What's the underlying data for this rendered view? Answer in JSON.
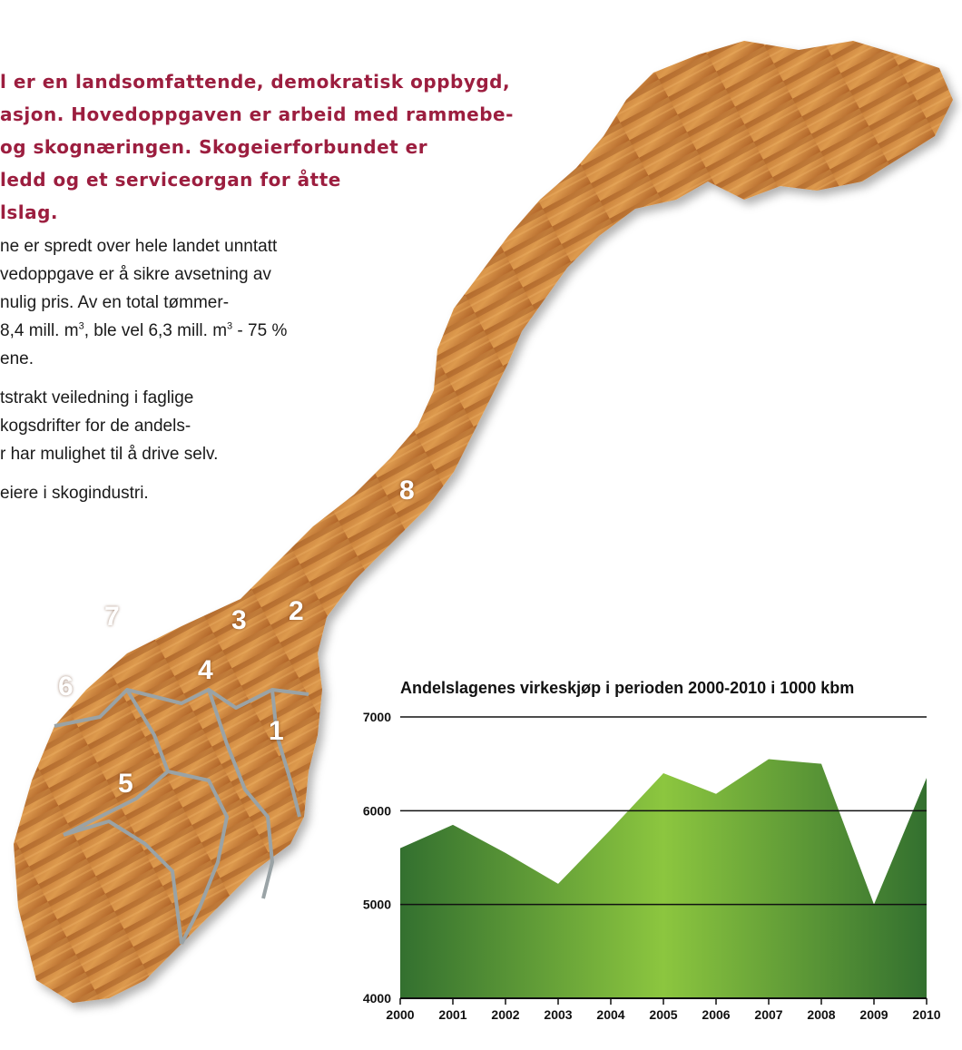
{
  "intro": {
    "lines": [
      "l er en landsomfattende, demokratisk oppbygd,",
      "asjon. Hovedoppgaven er arbeid med rammebe-",
      "og skognæringen. Skogeierforbundet er",
      "ledd og et serviceorgan for åtte",
      "lslag."
    ]
  },
  "body": {
    "p1": {
      "line1": "ne er spredt over hele landet unntatt",
      "line2": "vedoppgave er å sikre avsetning av",
      "line3": "nulig pris. Av en total tømmer-",
      "line4_a": " 8,4 mill. m",
      "line4_b": ", ble vel 6,3 mill. m",
      "line4_c": " - 75 %",
      "line5": "ene.",
      "sup": "3"
    },
    "p2": {
      "line1": "tstrakt veiledning i faglige",
      "line2": "kogsdrifter for de andels-",
      "line3": "r har mulighet til å drive selv."
    },
    "p3": {
      "line1": " eiere i skogindustri."
    }
  },
  "map": {
    "regions": [
      "1",
      "2",
      "3",
      "4",
      "5",
      "6",
      "7",
      "8"
    ],
    "colors": {
      "wood_light": "#d9964a",
      "wood_dark": "#9a5420",
      "border": "#9aa3a6"
    }
  },
  "chart_data": {
    "type": "area",
    "title": "Andelslagenes virkeskjøp i perioden 2000-2010 i 1000 kbm",
    "x": [
      "2000",
      "2001",
      "2002",
      "2003",
      "2004",
      "2005",
      "2006",
      "2007",
      "2008",
      "2009",
      "2010"
    ],
    "values": [
      5600,
      5850,
      5550,
      5220,
      5800,
      6400,
      6180,
      6550,
      6500,
      5000,
      6350
    ],
    "ylim": [
      4000,
      7000
    ],
    "yticks": [
      "4000",
      "5000",
      "6000",
      "7000"
    ],
    "grid": true,
    "colors": {
      "edge_dark": "#33702f",
      "center_light": "#8cc63f"
    }
  }
}
